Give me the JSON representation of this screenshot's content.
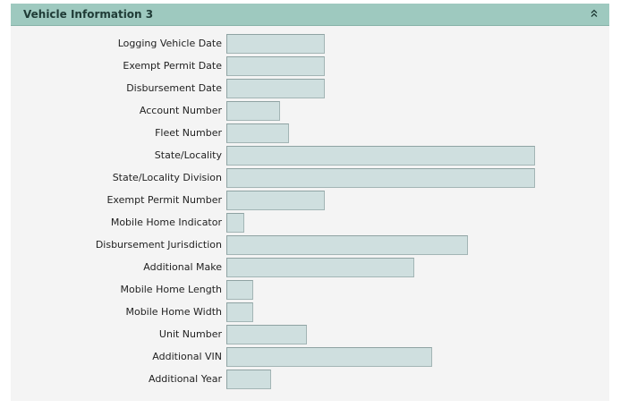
{
  "panel": {
    "title": "Vehicle Information 3",
    "collapse_icon": "double-chevron-up-icon",
    "colors": {
      "header_bg": "#9ec9bf",
      "body_bg": "#f4f4f4",
      "input_bg": "#cfdfdf",
      "input_border": "#a3b5b5"
    }
  },
  "fields": [
    {
      "key": "logging-vehicle-date",
      "label": "Logging Vehicle Date",
      "value": ""
    },
    {
      "key": "exempt-permit-date",
      "label": "Exempt Permit Date",
      "value": ""
    },
    {
      "key": "disbursement-date",
      "label": "Disbursement Date",
      "value": ""
    },
    {
      "key": "account-number",
      "label": "Account Number",
      "value": ""
    },
    {
      "key": "fleet-number",
      "label": "Fleet Number",
      "value": ""
    },
    {
      "key": "state-locality",
      "label": "State/Locality",
      "value": ""
    },
    {
      "key": "state-locality-division",
      "label": "State/Locality Division",
      "value": ""
    },
    {
      "key": "exempt-permit-number",
      "label": "Exempt Permit Number",
      "value": ""
    },
    {
      "key": "mobile-home-indicator",
      "label": "Mobile Home Indicator",
      "value": ""
    },
    {
      "key": "disbursement-jurisdiction",
      "label": "Disbursement Jurisdiction",
      "value": ""
    },
    {
      "key": "additional-make",
      "label": "Additional Make",
      "value": ""
    },
    {
      "key": "mobile-home-length",
      "label": "Mobile Home Length",
      "value": ""
    },
    {
      "key": "mobile-home-width",
      "label": "Mobile Home Width",
      "value": ""
    },
    {
      "key": "unit-number",
      "label": "Unit Number",
      "value": ""
    },
    {
      "key": "additional-vin",
      "label": "Additional VIN",
      "value": ""
    },
    {
      "key": "additional-year",
      "label": "Additional Year",
      "value": ""
    }
  ]
}
